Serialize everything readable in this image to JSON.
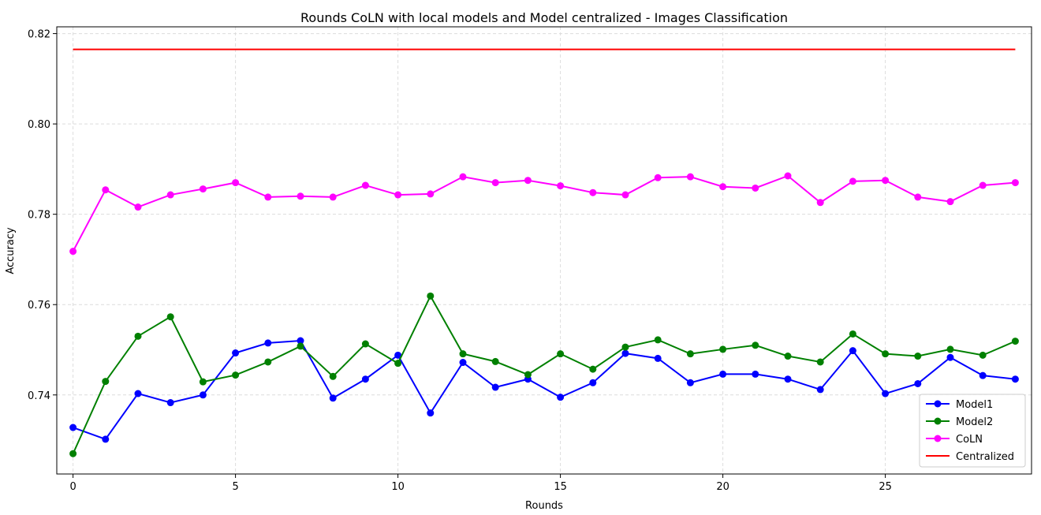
{
  "chart_data": {
    "type": "line",
    "title": "Rounds CoLN with local models and Model centralized - Images Classification",
    "xlabel": "Rounds",
    "ylabel": "Accuracy",
    "xlim": [
      -0.5,
      29.5
    ],
    "ylim": [
      0.7225,
      0.8215
    ],
    "xticks": [
      0,
      5,
      10,
      15,
      20,
      25
    ],
    "yticks": [
      0.74,
      0.76,
      0.78,
      0.8,
      0.82
    ],
    "ytick_labels": [
      "0.74",
      "0.76",
      "0.78",
      "0.80",
      "0.82"
    ],
    "grid": true,
    "legend_position": "lower-right",
    "x": [
      0,
      1,
      2,
      3,
      4,
      5,
      6,
      7,
      8,
      9,
      10,
      11,
      12,
      13,
      14,
      15,
      16,
      17,
      18,
      19,
      20,
      21,
      22,
      23,
      24,
      25,
      26,
      27,
      28,
      29
    ],
    "series": [
      {
        "name": "Model1",
        "color": "#0000ff",
        "marker": "circle",
        "values": [
          0.7328,
          0.7302,
          0.7403,
          0.7383,
          0.74,
          0.7493,
          0.7515,
          0.752,
          0.7393,
          0.7435,
          0.7488,
          0.736,
          0.7472,
          0.7417,
          0.7435,
          0.7395,
          0.7427,
          0.7492,
          0.7481,
          0.7427,
          0.7446,
          0.7446,
          0.7435,
          0.7412,
          0.7498,
          0.7403,
          0.7425,
          0.7483,
          0.7443,
          0.7435
        ]
      },
      {
        "name": "Model2",
        "color": "#008000",
        "marker": "circle",
        "values": [
          0.727,
          0.743,
          0.753,
          0.7573,
          0.7429,
          0.7444,
          0.7473,
          0.7508,
          0.7441,
          0.7513,
          0.747,
          0.7619,
          0.7491,
          0.7474,
          0.7445,
          0.7491,
          0.7457,
          0.7506,
          0.7522,
          0.7491,
          0.7501,
          0.751,
          0.7486,
          0.7473,
          0.7535,
          0.7491,
          0.7486,
          0.7501,
          0.7488,
          0.7519
        ]
      },
      {
        "name": "CoLN",
        "color": "#ff00ff",
        "marker": "circle",
        "values": [
          0.7718,
          0.7854,
          0.7816,
          0.7843,
          0.7856,
          0.787,
          0.7838,
          0.784,
          0.7838,
          0.7864,
          0.7843,
          0.7845,
          0.7883,
          0.787,
          0.7875,
          0.7863,
          0.7848,
          0.7843,
          0.7881,
          0.7883,
          0.7861,
          0.7858,
          0.7885,
          0.7826,
          0.7873,
          0.7875,
          0.7838,
          0.7828,
          0.7864,
          0.787
        ]
      },
      {
        "name": "Centralized",
        "color": "#ff0000",
        "marker": "none",
        "values": [
          0.8165,
          0.8165,
          0.8165,
          0.8165,
          0.8165,
          0.8165,
          0.8165,
          0.8165,
          0.8165,
          0.8165,
          0.8165,
          0.8165,
          0.8165,
          0.8165,
          0.8165,
          0.8165,
          0.8165,
          0.8165,
          0.8165,
          0.8165,
          0.8165,
          0.8165,
          0.8165,
          0.8165,
          0.8165,
          0.8165,
          0.8165,
          0.8165,
          0.8165,
          0.8165
        ]
      }
    ]
  }
}
